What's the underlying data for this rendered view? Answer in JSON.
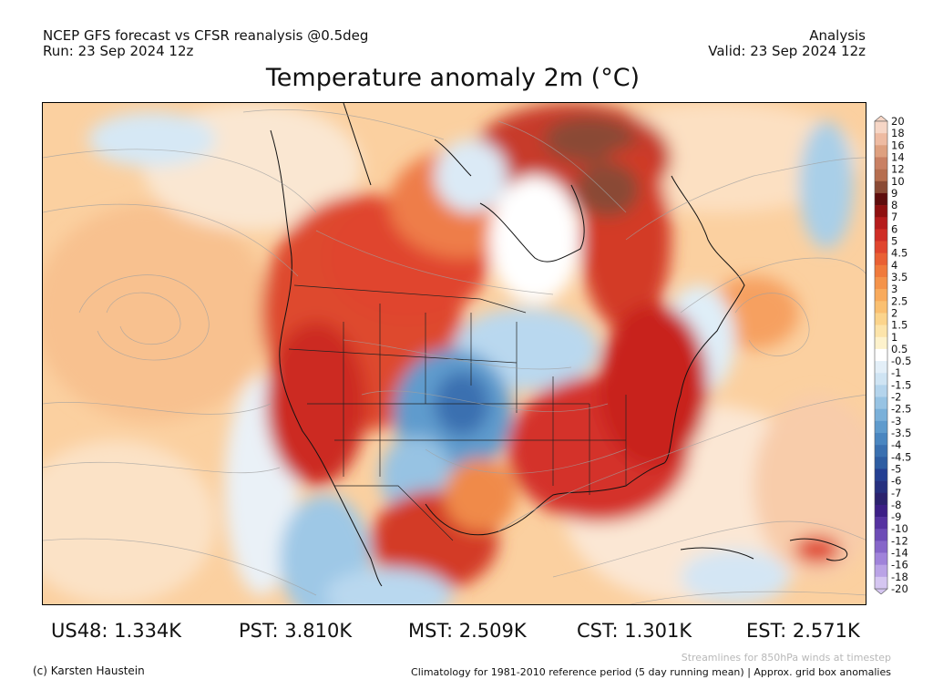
{
  "header": {
    "model_line": "NCEP GFS forecast vs CFSR reanalysis @0.5deg",
    "run_line": "Run: 23 Sep 2024 12z",
    "analysis_label": "Analysis",
    "valid_line": "Valid: 23 Sep 2024 12z"
  },
  "title": "Temperature anomaly 2m (°C)",
  "colorbar": {
    "labels": [
      "20",
      "18",
      "16",
      "14",
      "12",
      "10",
      "9",
      "8",
      "7",
      "6",
      "5",
      "4.5",
      "4",
      "3.5",
      "3",
      "2.5",
      "2",
      "1.5",
      "1",
      "0.5",
      "-0.5",
      "-1",
      "-1.5",
      "-2",
      "-2.5",
      "-3",
      "-3.5",
      "-4",
      "-4.5",
      "-5",
      "-6",
      "-7",
      "-8",
      "-9",
      "-10",
      "-12",
      "-14",
      "-16",
      "-18",
      "-20"
    ],
    "colors": [
      "#f6d6c6",
      "#eebba2",
      "#dea07f",
      "#c98063",
      "#b66e4f",
      "#8a4a35",
      "#5e0d0d",
      "#8e1010",
      "#b51c1c",
      "#cf2d26",
      "#e0452e",
      "#e96034",
      "#f07a3c",
      "#f4934a",
      "#f8aa5c",
      "#fac071",
      "#fbd48c",
      "#fce4aa",
      "#fdf2cc",
      "#ffffff",
      "#e3eff8",
      "#cfe4f3",
      "#b4d4ec",
      "#97c3e3",
      "#7ab0d9",
      "#5f9bcd",
      "#4a86c0",
      "#3a70b0",
      "#2e5da2",
      "#243f92",
      "#26307f",
      "#2b226e",
      "#3c1f86",
      "#5532a0",
      "#6d4cb6",
      "#8666c9",
      "#a083da",
      "#baa3e6",
      "#d5c6f1"
    ]
  },
  "map": {
    "streamlines_caption": "Streamlines for 850hPa winds at timestep"
  },
  "stats": [
    {
      "region": "US48",
      "value": "1.334K",
      "text": "US48: 1.334K"
    },
    {
      "region": "PST",
      "value": "3.810K",
      "text": "PST: 3.810K"
    },
    {
      "region": "MST",
      "value": "2.509K",
      "text": "MST: 2.509K"
    },
    {
      "region": "CST",
      "value": "1.301K",
      "text": "CST: 1.301K"
    },
    {
      "region": "EST",
      "value": "2.571K",
      "text": "EST: 2.571K"
    }
  ],
  "footer": {
    "copyright": "(c) Karsten Haustein",
    "climatology": "Climatology for 1981-2010 reference period (5 day running mean) | Approx. grid box anomalies"
  }
}
